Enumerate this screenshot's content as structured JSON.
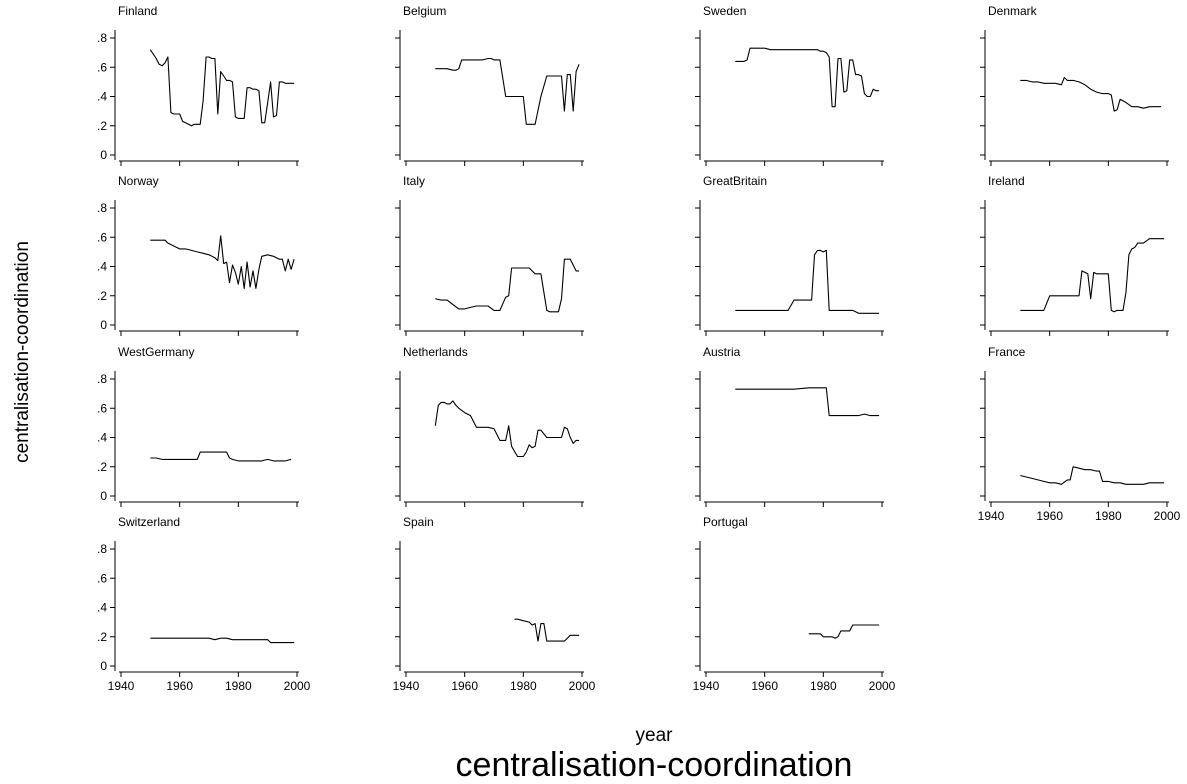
{
  "figure": {
    "title": "centralisation-coordination",
    "xlabel": "year",
    "ylabel": "centralisation-coordination"
  },
  "chart_data": {
    "type": "line",
    "xlim": [
      1940,
      2000
    ],
    "ylim": [
      0,
      0.8
    ],
    "xticks": [
      1940,
      1960,
      1980,
      2000
    ],
    "yticks": [
      0,
      0.2,
      0.4,
      0.6,
      0.8
    ],
    "ytick_labels": [
      "0",
      ".2",
      ".4",
      ".6",
      ".8"
    ],
    "xtick_labels": [
      "1940",
      "1960",
      "1980",
      "2000"
    ],
    "panels": [
      {
        "name": "Finland",
        "x": [
          1950,
          1952,
          1953,
          1954,
          1955,
          1956,
          1957,
          1958,
          1960,
          1961,
          1962,
          1963,
          1964,
          1965,
          1966,
          1967,
          1968,
          1969,
          1970,
          1971,
          1972,
          1973,
          1974,
          1975,
          1976,
          1977,
          1978,
          1979,
          1980,
          1981,
          1982,
          1983,
          1984,
          1985,
          1986,
          1987,
          1988,
          1989,
          1990,
          1991,
          1992,
          1993,
          1994,
          1995,
          1996,
          1997,
          1998,
          1999
        ],
        "y": [
          0.72,
          0.66,
          0.62,
          0.61,
          0.63,
          0.67,
          0.29,
          0.28,
          0.28,
          0.23,
          0.22,
          0.21,
          0.2,
          0.21,
          0.21,
          0.21,
          0.37,
          0.67,
          0.67,
          0.66,
          0.66,
          0.28,
          0.57,
          0.54,
          0.51,
          0.51,
          0.5,
          0.26,
          0.25,
          0.25,
          0.25,
          0.46,
          0.46,
          0.45,
          0.45,
          0.44,
          0.22,
          0.22,
          0.36,
          0.5,
          0.26,
          0.27,
          0.5,
          0.5,
          0.49,
          0.49,
          0.49,
          0.49
        ]
      },
      {
        "name": "Belgium",
        "x": [
          1950,
          1952,
          1954,
          1956,
          1957,
          1958,
          1959,
          1960,
          1962,
          1964,
          1966,
          1968,
          1969,
          1970,
          1971,
          1972,
          1974,
          1975,
          1976,
          1977,
          1978,
          1980,
          1981,
          1982,
          1983,
          1984,
          1986,
          1988,
          1990,
          1991,
          1992,
          1993,
          1994,
          1995,
          1996,
          1997,
          1998,
          1999
        ],
        "y": [
          0.59,
          0.59,
          0.59,
          0.58,
          0.58,
          0.59,
          0.65,
          0.65,
          0.65,
          0.65,
          0.65,
          0.66,
          0.66,
          0.65,
          0.65,
          0.65,
          0.4,
          0.4,
          0.4,
          0.4,
          0.4,
          0.4,
          0.21,
          0.21,
          0.21,
          0.21,
          0.4,
          0.54,
          0.54,
          0.54,
          0.54,
          0.54,
          0.3,
          0.55,
          0.55,
          0.3,
          0.57,
          0.62
        ]
      },
      {
        "name": "Sweden",
        "x": [
          1950,
          1952,
          1953,
          1954,
          1955,
          1956,
          1958,
          1960,
          1962,
          1964,
          1966,
          1968,
          1970,
          1972,
          1974,
          1976,
          1977,
          1978,
          1979,
          1980,
          1981,
          1982,
          1983,
          1984,
          1985,
          1986,
          1987,
          1988,
          1989,
          1990,
          1991,
          1992,
          1993,
          1994,
          1995,
          1996,
          1997,
          1998,
          1999
        ],
        "y": [
          0.64,
          0.64,
          0.64,
          0.65,
          0.73,
          0.73,
          0.73,
          0.73,
          0.72,
          0.72,
          0.72,
          0.72,
          0.72,
          0.72,
          0.72,
          0.72,
          0.72,
          0.72,
          0.71,
          0.71,
          0.7,
          0.67,
          0.33,
          0.33,
          0.66,
          0.66,
          0.43,
          0.44,
          0.65,
          0.65,
          0.55,
          0.55,
          0.54,
          0.42,
          0.4,
          0.4,
          0.45,
          0.44,
          0.44
        ]
      },
      {
        "name": "Denmark",
        "x": [
          1950,
          1952,
          1954,
          1956,
          1958,
          1960,
          1962,
          1964,
          1965,
          1966,
          1968,
          1970,
          1972,
          1974,
          1976,
          1978,
          1980,
          1981,
          1982,
          1983,
          1984,
          1986,
          1988,
          1990,
          1992,
          1994,
          1996,
          1998
        ],
        "y": [
          0.51,
          0.51,
          0.5,
          0.5,
          0.49,
          0.49,
          0.49,
          0.48,
          0.53,
          0.51,
          0.51,
          0.5,
          0.48,
          0.45,
          0.43,
          0.42,
          0.42,
          0.41,
          0.3,
          0.31,
          0.38,
          0.36,
          0.33,
          0.33,
          0.32,
          0.33,
          0.33,
          0.33
        ]
      },
      {
        "name": "Norway",
        "x": [
          1950,
          1952,
          1954,
          1955,
          1956,
          1958,
          1960,
          1962,
          1964,
          1966,
          1968,
          1970,
          1972,
          1973,
          1974,
          1975,
          1976,
          1977,
          1978,
          1979,
          1980,
          1981,
          1982,
          1983,
          1984,
          1985,
          1986,
          1987,
          1988,
          1990,
          1992,
          1994,
          1995,
          1996,
          1997,
          1998,
          1999
        ],
        "y": [
          0.58,
          0.58,
          0.58,
          0.58,
          0.56,
          0.54,
          0.52,
          0.52,
          0.51,
          0.5,
          0.49,
          0.48,
          0.46,
          0.44,
          0.61,
          0.42,
          0.43,
          0.29,
          0.41,
          0.36,
          0.28,
          0.4,
          0.25,
          0.43,
          0.26,
          0.37,
          0.25,
          0.38,
          0.47,
          0.48,
          0.47,
          0.45,
          0.45,
          0.37,
          0.45,
          0.38,
          0.45
        ]
      },
      {
        "name": "Italy",
        "x": [
          1950,
          1952,
          1954,
          1956,
          1958,
          1960,
          1962,
          1964,
          1966,
          1968,
          1970,
          1971,
          1972,
          1974,
          1975,
          1976,
          1978,
          1980,
          1982,
          1983,
          1984,
          1986,
          1988,
          1989,
          1990,
          1991,
          1992,
          1993,
          1994,
          1996,
          1998,
          1999
        ],
        "y": [
          0.18,
          0.17,
          0.17,
          0.14,
          0.11,
          0.11,
          0.12,
          0.13,
          0.13,
          0.13,
          0.1,
          0.1,
          0.1,
          0.19,
          0.2,
          0.39,
          0.39,
          0.39,
          0.39,
          0.37,
          0.35,
          0.35,
          0.1,
          0.09,
          0.09,
          0.09,
          0.09,
          0.18,
          0.45,
          0.45,
          0.37,
          0.37
        ]
      },
      {
        "name": "GreatBritain",
        "x": [
          1950,
          1952,
          1954,
          1956,
          1958,
          1960,
          1962,
          1964,
          1966,
          1968,
          1970,
          1972,
          1974,
          1976,
          1977,
          1978,
          1979,
          1980,
          1981,
          1982,
          1984,
          1986,
          1988,
          1990,
          1991,
          1992,
          1994,
          1996,
          1998,
          1999
        ],
        "y": [
          0.1,
          0.1,
          0.1,
          0.1,
          0.1,
          0.1,
          0.1,
          0.1,
          0.1,
          0.1,
          0.17,
          0.17,
          0.17,
          0.17,
          0.48,
          0.51,
          0.51,
          0.5,
          0.51,
          0.1,
          0.1,
          0.1,
          0.1,
          0.1,
          0.09,
          0.08,
          0.08,
          0.08,
          0.08,
          0.08
        ]
      },
      {
        "name": "Ireland",
        "x": [
          1950,
          1952,
          1954,
          1956,
          1958,
          1960,
          1962,
          1964,
          1966,
          1968,
          1970,
          1971,
          1972,
          1973,
          1974,
          1975,
          1976,
          1978,
          1980,
          1981,
          1982,
          1983,
          1984,
          1985,
          1986,
          1987,
          1988,
          1989,
          1990,
          1992,
          1994,
          1996,
          1998,
          1999
        ],
        "y": [
          0.1,
          0.1,
          0.1,
          0.1,
          0.1,
          0.2,
          0.2,
          0.2,
          0.2,
          0.2,
          0.2,
          0.37,
          0.36,
          0.35,
          0.18,
          0.36,
          0.35,
          0.35,
          0.35,
          0.1,
          0.09,
          0.1,
          0.1,
          0.1,
          0.22,
          0.48,
          0.52,
          0.53,
          0.56,
          0.56,
          0.59,
          0.59,
          0.59,
          0.59
        ]
      },
      {
        "name": "WestGermany",
        "x": [
          1950,
          1952,
          1954,
          1956,
          1958,
          1960,
          1962,
          1964,
          1966,
          1967,
          1968,
          1970,
          1972,
          1974,
          1976,
          1977,
          1978,
          1980,
          1982,
          1984,
          1986,
          1988,
          1990,
          1992,
          1994,
          1996,
          1998
        ],
        "y": [
          0.26,
          0.26,
          0.25,
          0.25,
          0.25,
          0.25,
          0.25,
          0.25,
          0.25,
          0.3,
          0.3,
          0.3,
          0.3,
          0.3,
          0.3,
          0.26,
          0.25,
          0.24,
          0.24,
          0.24,
          0.24,
          0.24,
          0.25,
          0.24,
          0.24,
          0.24,
          0.25
        ]
      },
      {
        "name": "Netherlands",
        "x": [
          1950,
          1951,
          1952,
          1953,
          1954,
          1955,
          1956,
          1957,
          1958,
          1960,
          1962,
          1964,
          1966,
          1968,
          1970,
          1972,
          1973,
          1974,
          1975,
          1976,
          1978,
          1980,
          1981,
          1982,
          1983,
          1984,
          1985,
          1986,
          1988,
          1990,
          1992,
          1993,
          1994,
          1995,
          1996,
          1997,
          1998,
          1999
        ],
        "y": [
          0.48,
          0.62,
          0.64,
          0.64,
          0.63,
          0.63,
          0.65,
          0.62,
          0.6,
          0.57,
          0.55,
          0.47,
          0.47,
          0.47,
          0.46,
          0.38,
          0.38,
          0.38,
          0.48,
          0.34,
          0.27,
          0.27,
          0.3,
          0.35,
          0.33,
          0.34,
          0.45,
          0.45,
          0.4,
          0.4,
          0.4,
          0.4,
          0.47,
          0.46,
          0.4,
          0.36,
          0.38,
          0.38
        ]
      },
      {
        "name": "Austria",
        "x": [
          1950,
          1955,
          1960,
          1965,
          1970,
          1975,
          1980,
          1981,
          1982,
          1984,
          1986,
          1988,
          1990,
          1992,
          1994,
          1996,
          1998,
          1999
        ],
        "y": [
          0.73,
          0.73,
          0.73,
          0.73,
          0.73,
          0.74,
          0.74,
          0.74,
          0.55,
          0.55,
          0.55,
          0.55,
          0.55,
          0.55,
          0.56,
          0.55,
          0.55,
          0.55
        ]
      },
      {
        "name": "France",
        "x": [
          1950,
          1952,
          1954,
          1956,
          1958,
          1960,
          1962,
          1964,
          1966,
          1967,
          1968,
          1970,
          1972,
          1974,
          1976,
          1977,
          1978,
          1980,
          1982,
          1984,
          1986,
          1988,
          1990,
          1992,
          1994,
          1996,
          1998,
          1999
        ],
        "y": [
          0.14,
          0.13,
          0.12,
          0.11,
          0.1,
          0.09,
          0.09,
          0.08,
          0.11,
          0.11,
          0.2,
          0.19,
          0.18,
          0.18,
          0.17,
          0.17,
          0.1,
          0.1,
          0.09,
          0.09,
          0.08,
          0.08,
          0.08,
          0.08,
          0.09,
          0.09,
          0.09,
          0.09
        ]
      },
      {
        "name": "Switzerland",
        "x": [
          1950,
          1955,
          1960,
          1965,
          1970,
          1972,
          1974,
          1976,
          1978,
          1980,
          1982,
          1984,
          1986,
          1988,
          1990,
          1991,
          1992,
          1994,
          1996,
          1998,
          1999
        ],
        "y": [
          0.19,
          0.19,
          0.19,
          0.19,
          0.19,
          0.18,
          0.19,
          0.19,
          0.18,
          0.18,
          0.18,
          0.18,
          0.18,
          0.18,
          0.18,
          0.16,
          0.16,
          0.16,
          0.16,
          0.16,
          0.16
        ]
      },
      {
        "name": "Spain",
        "x": [
          1977,
          1978,
          1980,
          1982,
          1983,
          1984,
          1985,
          1986,
          1987,
          1988,
          1990,
          1992,
          1993,
          1994,
          1996,
          1998,
          1999
        ],
        "y": [
          0.32,
          0.32,
          0.31,
          0.3,
          0.28,
          0.29,
          0.17,
          0.29,
          0.29,
          0.17,
          0.17,
          0.17,
          0.17,
          0.17,
          0.21,
          0.21,
          0.21
        ]
      },
      {
        "name": "Portugal",
        "x": [
          1975,
          1977,
          1979,
          1980,
          1982,
          1983,
          1984,
          1985,
          1986,
          1987,
          1988,
          1989,
          1990,
          1992,
          1994,
          1996,
          1998,
          1999
        ],
        "y": [
          0.22,
          0.22,
          0.22,
          0.2,
          0.2,
          0.2,
          0.19,
          0.2,
          0.24,
          0.24,
          0.24,
          0.24,
          0.28,
          0.28,
          0.28,
          0.28,
          0.28,
          0.28
        ]
      }
    ]
  }
}
